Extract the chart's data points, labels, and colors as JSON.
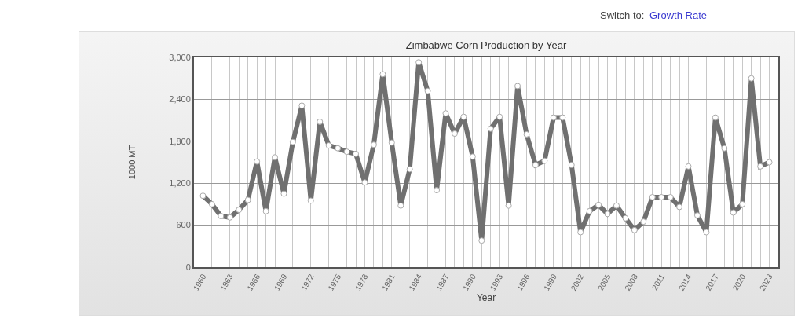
{
  "chart_data": {
    "type": "line",
    "title": "Zimbabwe Corn Production by Year",
    "xlabel": "Year",
    "ylabel": "1000 MT",
    "annotations": [
      "Switch to:",
      "Growth Rate"
    ],
    "x": [
      1960,
      1961,
      1962,
      1963,
      1964,
      1965,
      1966,
      1967,
      1968,
      1969,
      1970,
      1971,
      1972,
      1973,
      1974,
      1975,
      1976,
      1977,
      1978,
      1979,
      1980,
      1981,
      1982,
      1983,
      1984,
      1985,
      1986,
      1987,
      1988,
      1989,
      1990,
      1991,
      1992,
      1993,
      1994,
      1995,
      1996,
      1997,
      1998,
      1999,
      2000,
      2001,
      2002,
      2003,
      2004,
      2005,
      2006,
      2007,
      2008,
      2009,
      2010,
      2011,
      2012,
      2013,
      2014,
      2015,
      2016,
      2017,
      2018,
      2019,
      2020,
      2021,
      2022,
      2023
    ],
    "series": [
      {
        "color": "#707070",
        "values": [
          1020,
          900,
          730,
          710,
          820,
          960,
          1510,
          800,
          1570,
          1050,
          1790,
          2310,
          950,
          2080,
          1740,
          1700,
          1650,
          1620,
          1210,
          1750,
          2760,
          1780,
          880,
          1400,
          2930,
          2520,
          1100,
          2200,
          1910,
          2150,
          1580,
          380,
          1980,
          2150,
          880,
          2590,
          1900,
          1460,
          1520,
          2140,
          2140,
          1460,
          500,
          800,
          890,
          760,
          880,
          700,
          530,
          650,
          1000,
          1000,
          1000,
          860,
          1440,
          740,
          500,
          2140,
          1700,
          780,
          900,
          2700,
          1440,
          1500
        ]
      }
    ],
    "xlim": [
      1959,
      2024
    ],
    "ylim": [
      0,
      3000
    ],
    "xticks": [
      1960,
      {
        "value": 1961,
        "label": null
      },
      {
        "value": 1962,
        "label": null
      },
      1963,
      {
        "value": 1964,
        "label": null
      },
      {
        "value": 1965,
        "label": null
      },
      1966,
      {
        "value": 1967,
        "label": null
      },
      {
        "value": 1968,
        "label": null
      },
      1969,
      {
        "value": 1970,
        "label": null
      },
      {
        "value": 1971,
        "label": null
      },
      1972,
      {
        "value": 1973,
        "label": null
      },
      {
        "value": 1974,
        "label": null
      },
      1975,
      {
        "value": 1976,
        "label": null
      },
      {
        "value": 1977,
        "label": null
      },
      1978,
      {
        "value": 1979,
        "label": null
      },
      {
        "value": 1980,
        "label": null
      },
      1981,
      {
        "value": 1982,
        "label": null
      },
      {
        "value": 1983,
        "label": null
      },
      1984,
      {
        "value": 1985,
        "label": null
      },
      {
        "value": 1986,
        "label": null
      },
      1987,
      {
        "value": 1988,
        "label": null
      },
      {
        "value": 1989,
        "label": null
      },
      1990,
      {
        "value": 1991,
        "label": null
      },
      {
        "value": 1992,
        "label": null
      },
      1993,
      {
        "value": 1994,
        "label": null
      },
      {
        "value": 1995,
        "label": null
      },
      1996,
      {
        "value": 1997,
        "label": null
      },
      {
        "value": 1998,
        "label": null
      },
      1999,
      {
        "value": 2000,
        "label": null
      },
      {
        "value": 2001,
        "label": null
      },
      2002,
      {
        "value": 2003,
        "label": null
      },
      {
        "value": 2004,
        "label": null
      },
      2005,
      {
        "value": 2006,
        "label": null
      },
      {
        "value": 2007,
        "label": null
      },
      2008,
      {
        "value": 2009,
        "label": null
      },
      {
        "value": 2010,
        "label": null
      },
      2011,
      {
        "value": 2012,
        "label": null
      },
      {
        "value": 2013,
        "label": null
      },
      2014,
      {
        "value": 2015,
        "label": null
      },
      {
        "value": 2016,
        "label": null
      },
      2017,
      {
        "value": 2018,
        "label": null
      },
      {
        "value": 2019,
        "label": null
      },
      2020,
      {
        "value": 2021,
        "label": null
      },
      {
        "value": 2022,
        "label": null
      },
      2023
    ],
    "yticks": [
      0,
      {
        "value": 600,
        "label": "600"
      },
      {
        "value": 1200,
        "label": "1,200"
      },
      {
        "value": 1800,
        "label": "1,800"
      },
      {
        "value": 2400,
        "label": "2,400"
      },
      {
        "value": 3000,
        "label": "3,000"
      }
    ],
    "grid": true,
    "marker": "circle",
    "line_style": "solid"
  }
}
